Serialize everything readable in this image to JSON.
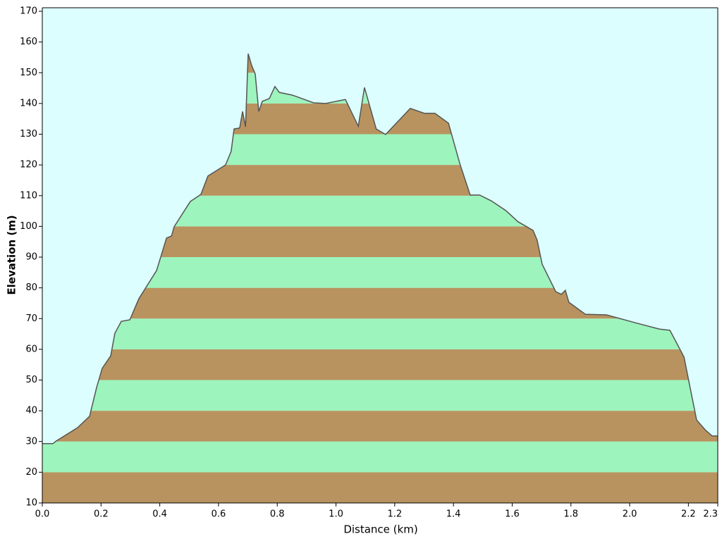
{
  "chart_data": {
    "type": "area",
    "x_label": "Distance   (km)",
    "y_label": "Elevation (m)",
    "x": [
      0,
      0.036,
      0.048,
      0.12,
      0.161,
      0.185,
      0.204,
      0.233,
      0.247,
      0.269,
      0.298,
      0.329,
      0.389,
      0.423,
      0.44,
      0.449,
      0.504,
      0.54,
      0.564,
      0.624,
      0.643,
      0.653,
      0.672,
      0.682,
      0.692,
      0.701,
      0.713,
      0.725,
      0.737,
      0.749,
      0.773,
      0.792,
      0.807,
      0.852,
      0.924,
      0.965,
      1.032,
      1.076,
      1.097,
      1.137,
      1.169,
      1.253,
      1.301,
      1.337,
      1.383,
      1.422,
      1.457,
      1.489,
      1.529,
      1.579,
      1.62,
      1.671,
      1.685,
      1.702,
      1.748,
      1.767,
      1.781,
      1.793,
      1.849,
      1.921,
      2.017,
      2.101,
      2.137,
      2.185,
      2.209,
      2.228,
      2.257,
      2.281,
      2.3
    ],
    "values": [
      29.3,
      29.3,
      30.2,
      34.5,
      38.2,
      47.6,
      53.8,
      57.9,
      65.2,
      69.1,
      69.6,
      76.5,
      85.6,
      96.2,
      96.9,
      99.9,
      108.1,
      110.4,
      116.4,
      120,
      124.4,
      131.7,
      132,
      137.4,
      132.4,
      156.2,
      152.3,
      149.6,
      137.4,
      140.7,
      141.6,
      145.5,
      143.6,
      142.7,
      140.2,
      140,
      141.3,
      132.6,
      145.2,
      131.7,
      129.9,
      138.4,
      136.8,
      136.8,
      133.6,
      120.3,
      110.2,
      110.2,
      108.3,
      105.1,
      101.5,
      98.7,
      95.5,
      87.7,
      78.8,
      77.9,
      79.2,
      75.3,
      71.4,
      71.2,
      68.7,
      66.6,
      66.2,
      57.5,
      46,
      37,
      33.8,
      31.8,
      31.8
    ],
    "xlim": [
      0,
      2.3
    ],
    "ylim": [
      10,
      170
    ],
    "xticks": [
      {
        "value": 0,
        "label": "0.0"
      },
      0.2,
      0.4,
      0.6,
      0.8,
      {
        "value": 1,
        "label": "1.0"
      },
      1.2,
      1.4,
      1.6,
      1.8,
      {
        "value": 2,
        "label": "2.0"
      },
      2.2,
      2.3
    ],
    "yticks": [
      10,
      20,
      30,
      40,
      50,
      60,
      70,
      80,
      90,
      100,
      110,
      120,
      130,
      140,
      150,
      160,
      170
    ],
    "band_colors": [
      "#b9935f",
      "#9df4bd"
    ],
    "line_color": "#555555",
    "background": "#dcfefe"
  }
}
